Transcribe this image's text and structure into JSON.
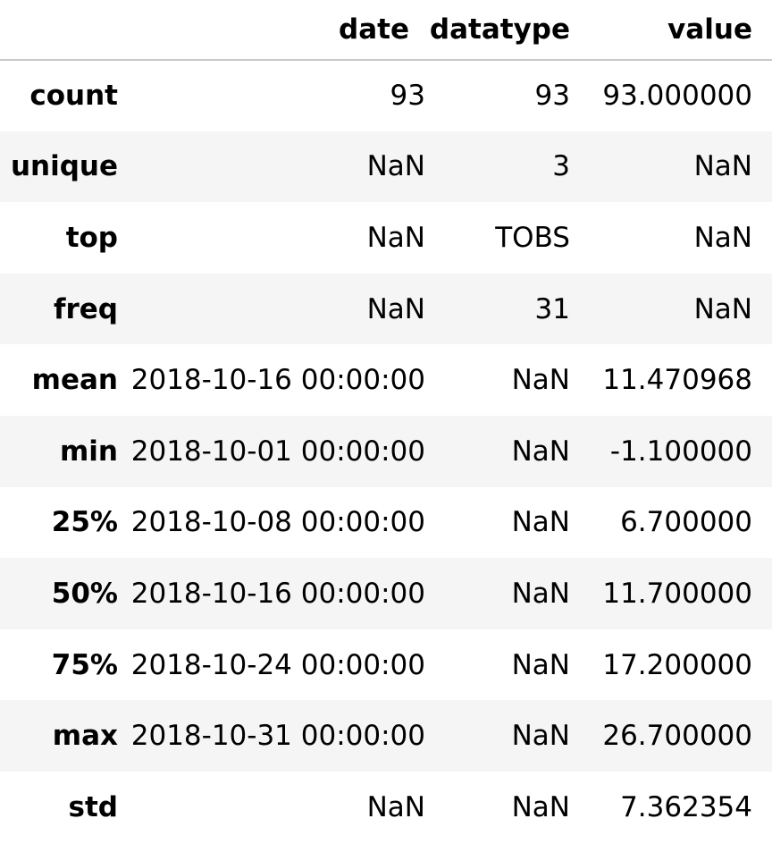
{
  "table": {
    "columns": [
      "date",
      "datatype",
      "value"
    ],
    "rows": [
      {
        "index": "count",
        "date": "93",
        "datatype": "93",
        "value": "93.000000"
      },
      {
        "index": "unique",
        "date": "NaN",
        "datatype": "3",
        "value": "NaN"
      },
      {
        "index": "top",
        "date": "NaN",
        "datatype": "TOBS",
        "value": "NaN"
      },
      {
        "index": "freq",
        "date": "NaN",
        "datatype": "31",
        "value": "NaN"
      },
      {
        "index": "mean",
        "date": "2018-10-16 00:00:00",
        "datatype": "NaN",
        "value": "11.470968"
      },
      {
        "index": "min",
        "date": "2018-10-01 00:00:00",
        "datatype": "NaN",
        "value": "-1.100000"
      },
      {
        "index": "25%",
        "date": "2018-10-08 00:00:00",
        "datatype": "NaN",
        "value": "6.700000"
      },
      {
        "index": "50%",
        "date": "2018-10-16 00:00:00",
        "datatype": "NaN",
        "value": "11.700000"
      },
      {
        "index": "75%",
        "date": "2018-10-24 00:00:00",
        "datatype": "NaN",
        "value": "17.200000"
      },
      {
        "index": "max",
        "date": "2018-10-31 00:00:00",
        "datatype": "NaN",
        "value": "26.700000"
      },
      {
        "index": "std",
        "date": "NaN",
        "datatype": "NaN",
        "value": "7.362354"
      }
    ]
  }
}
